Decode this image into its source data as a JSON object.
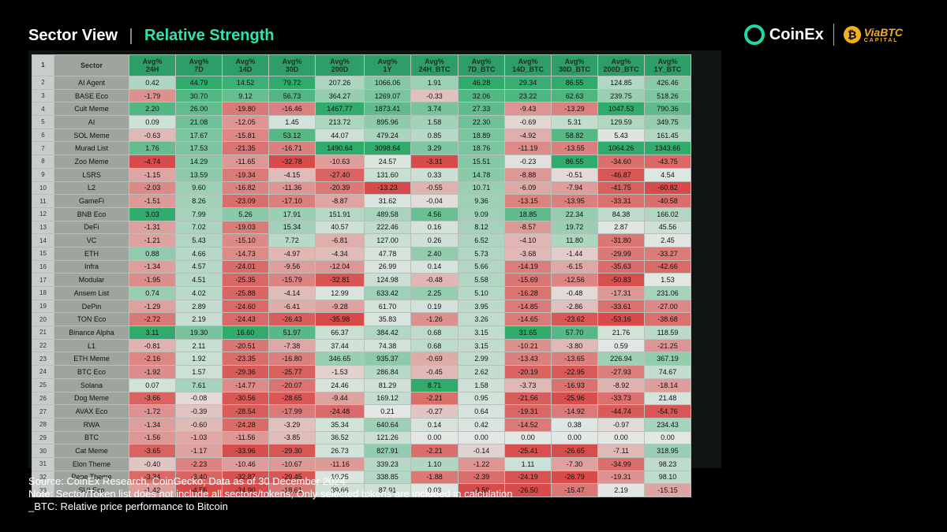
{
  "header": {
    "title": "Sector View",
    "subtitle": "Relative Strength"
  },
  "logos": {
    "coinex": "CoinEx",
    "viabtc": "ViaBTC",
    "viabtc_sub": "CAPITAL"
  },
  "colors": {
    "accent": "#2fe3b0",
    "positive": "#1fa664",
    "negative": "#d23a3a",
    "neutral": "#e4e8e5"
  },
  "table": {
    "header_row_number": "1",
    "columns": [
      "Sector",
      "Avg%\n24H",
      "Avg%\n7D",
      "Avg%\n14D",
      "Avg%\n30D",
      "Avg%\n200D",
      "Avg%\n1Y",
      "Avg%\n24H_BTC",
      "Avg%\n7D_BTC",
      "Avg%\n14D_BTC",
      "Avg%\n30D_BTC",
      "Avg%\n200D_BTC",
      "Avg%\n1Y_BTC"
    ],
    "rows": [
      {
        "n": "2",
        "sector": "AI Agent",
        "values": [
          "0.42",
          "44.79",
          "14.52",
          "79.72",
          "207.26",
          "1066.06",
          "1.91",
          "46.28",
          "29.34",
          "86.55",
          "124.85",
          "426.46"
        ]
      },
      {
        "n": "3",
        "sector": "BASE Eco",
        "values": [
          "-1.79",
          "30.70",
          "9.12",
          "56.73",
          "364.27",
          "1269.07",
          "-0.33",
          "32.06",
          "23.22",
          "62.63",
          "239.75",
          "518.26"
        ]
      },
      {
        "n": "4",
        "sector": "Cult Meme",
        "values": [
          "2.20",
          "26.00",
          "-19.80",
          "-16.46",
          "1467.77",
          "1873.41",
          "3.74",
          "27.33",
          "-9.43",
          "-13.29",
          "1047.53",
          "790.36"
        ]
      },
      {
        "n": "5",
        "sector": "AI",
        "values": [
          "0.09",
          "21.08",
          "-12.05",
          "1.45",
          "213.72",
          "895.96",
          "1.58",
          "22.30",
          "-0.69",
          "5.31",
          "129.59",
          "349.75"
        ]
      },
      {
        "n": "6",
        "sector": "SOL Meme",
        "values": [
          "-0.63",
          "17.67",
          "-15.81",
          "53.12",
          "44.07",
          "479.24",
          "0.85",
          "18.89",
          "-4.92",
          "58.82",
          "5.43",
          "161.45"
        ]
      },
      {
        "n": "7",
        "sector": "Murad List",
        "values": [
          "1.76",
          "17.53",
          "-21.35",
          "-16.71",
          "1490.64",
          "3098.64",
          "3.29",
          "18.76",
          "-11.19",
          "-13.55",
          "1064.26",
          "1343.66"
        ]
      },
      {
        "n": "8",
        "sector": "Zoo Meme",
        "values": [
          "-4.74",
          "14.29",
          "-11.65",
          "-32.78",
          "-10.63",
          "24.57",
          "-3.31",
          "15.51",
          "-0.23",
          "86.55",
          "-34.60",
          "-43.75"
        ]
      },
      {
        "n": "9",
        "sector": "LSRS",
        "values": [
          "-1.15",
          "13.59",
          "-19.34",
          "-4.15",
          "-27.40",
          "131.60",
          "0.33",
          "14.78",
          "-8.88",
          "-0.51",
          "-46.87",
          "4.54"
        ]
      },
      {
        "n": "10",
        "sector": "L2",
        "values": [
          "-2.03",
          "9.60",
          "-16.82",
          "-11.36",
          "-20.39",
          "-13.23",
          "-0.55",
          "10.71",
          "-6.09",
          "-7.94",
          "-41.75",
          "-60.82"
        ]
      },
      {
        "n": "11",
        "sector": "GameFi",
        "values": [
          "-1.51",
          "8.26",
          "-23.09",
          "-17.10",
          "-8.87",
          "31.62",
          "-0.04",
          "9.36",
          "-13.15",
          "-13.95",
          "-33.31",
          "-40.58"
        ]
      },
      {
        "n": "12",
        "sector": "BNB Eco",
        "values": [
          "3.03",
          "7.99",
          "5.26",
          "17.91",
          "151.91",
          "489.58",
          "4.56",
          "9.09",
          "18.85",
          "22.34",
          "84.38",
          "166.02"
        ]
      },
      {
        "n": "13",
        "sector": "DeFi",
        "values": [
          "-1.31",
          "7.02",
          "-19.03",
          "15.34",
          "40.57",
          "222.46",
          "0.16",
          "8.12",
          "-8.57",
          "19.72",
          "2.87",
          "45.56"
        ]
      },
      {
        "n": "14",
        "sector": "VC",
        "values": [
          "-1.21",
          "5.43",
          "-15.10",
          "7.72",
          "-6.81",
          "127.00",
          "0.26",
          "6.52",
          "-4.10",
          "11.80",
          "-31.80",
          "2.45"
        ]
      },
      {
        "n": "15",
        "sector": "ETH",
        "values": [
          "0.88",
          "4.66",
          "-14.73",
          "-4.97",
          "-4.34",
          "47.78",
          "2.40",
          "5.73",
          "-3.68",
          "-1.44",
          "-29.99",
          "-33.27"
        ]
      },
      {
        "n": "16",
        "sector": "Infra",
        "values": [
          "-1.34",
          "4.57",
          "-24.01",
          "-9.56",
          "-12.04",
          "26.99",
          "0.14",
          "5.66",
          "-14.19",
          "-6.15",
          "-35.63",
          "-42.66"
        ]
      },
      {
        "n": "17",
        "sector": "Modular",
        "values": [
          "-1.95",
          "4.51",
          "-25.35",
          "-15.79",
          "-32.81",
          "124.98",
          "-0.48",
          "5.58",
          "-15.69",
          "-12.56",
          "-50.83",
          "1.53"
        ]
      },
      {
        "n": "18",
        "sector": "Ansem List",
        "values": [
          "0.74",
          "4.02",
          "-25.88",
          "-4.14",
          "12.99",
          "633.42",
          "2.25",
          "5.10",
          "-16.28",
          "-0.48",
          "-17.31",
          "231.06"
        ]
      },
      {
        "n": "19",
        "sector": "DePin",
        "values": [
          "-1.29",
          "2.89",
          "-24.60",
          "-6.41",
          "-9.28",
          "61.70",
          "0.19",
          "3.95",
          "-14.85",
          "-2.86",
          "-33.61",
          "-27.00"
        ]
      },
      {
        "n": "20",
        "sector": "TON Eco",
        "values": [
          "-2.72",
          "2.19",
          "-24.43",
          "-26.43",
          "-35.98",
          "35.83",
          "-1.26",
          "3.26",
          "-14.65",
          "-23.62",
          "-53.16",
          "-38.68"
        ]
      },
      {
        "n": "21",
        "sector": "Binance Alpha",
        "values": [
          "3.11",
          "19.30",
          "16.60",
          "51.97",
          "66.37",
          "384.42",
          "0.68",
          "3.15",
          "31.65",
          "57.70",
          "21.76",
          "118.59"
        ]
      },
      {
        "n": "22",
        "sector": "L1",
        "values": [
          "-0.81",
          "2.11",
          "-20.51",
          "-7.38",
          "37.44",
          "74.38",
          "0.68",
          "3.15",
          "-10.21",
          "-3.80",
          "0.59",
          "-21.25"
        ]
      },
      {
        "n": "23",
        "sector": "ETH Meme",
        "values": [
          "-2.16",
          "1.92",
          "-23.35",
          "-16.80",
          "346.65",
          "935.37",
          "-0.69",
          "2.99",
          "-13.43",
          "-13.65",
          "226.94",
          "367.19"
        ]
      },
      {
        "n": "24",
        "sector": "BTC Eco",
        "values": [
          "-1.92",
          "1.57",
          "-29.36",
          "-25.77",
          "-1.53",
          "286.84",
          "-0.45",
          "2.62",
          "-20.19",
          "-22.95",
          "-27.93",
          "74.67"
        ]
      },
      {
        "n": "25",
        "sector": "Solana",
        "values": [
          "0.07",
          "7.61",
          "-14.77",
          "-20.07",
          "24.46",
          "81.29",
          "8.71",
          "1.58",
          "-3.73",
          "-16.93",
          "-8.92",
          "-18.14"
        ]
      },
      {
        "n": "26",
        "sector": "Dog Meme",
        "values": [
          "-3.66",
          "-0.08",
          "-30.56",
          "-28.65",
          "-9.44",
          "169.12",
          "-2.21",
          "0.95",
          "-21.56",
          "-25.96",
          "-33.73",
          "21.48"
        ]
      },
      {
        "n": "27",
        "sector": "AVAX Eco",
        "values": [
          "-1.72",
          "-0.39",
          "-28.54",
          "-17.99",
          "-24.48",
          "0.21",
          "-0.27",
          "0.64",
          "-19.31",
          "-14.92",
          "-44.74",
          "-54.76"
        ]
      },
      {
        "n": "28",
        "sector": "RWA",
        "values": [
          "-1.34",
          "-0.60",
          "-24.28",
          "-3.29",
          "35.34",
          "640.64",
          "0.14",
          "0.42",
          "-14.52",
          "0.38",
          "-0.97",
          "234.43"
        ]
      },
      {
        "n": "29",
        "sector": "BTC",
        "values": [
          "-1.56",
          "-1.03",
          "-11.56",
          "-3.85",
          "36.52",
          "121.26",
          "0.00",
          "0.00",
          "0.00",
          "0.00",
          "0.00",
          "0.00"
        ]
      },
      {
        "n": "30",
        "sector": "Cat Meme",
        "values": [
          "-3.65",
          "-1.17",
          "-33.96",
          "-29.30",
          "26.73",
          "827.91",
          "-2.21",
          "-0.14",
          "-25.41",
          "-26.65",
          "-7.11",
          "318.95"
        ]
      },
      {
        "n": "31",
        "sector": "Elon Theme",
        "values": [
          "-0.40",
          "-2.23",
          "-10.46",
          "-10.67",
          "-11.16",
          "339.23",
          "1.10",
          "-1.22",
          "1.11",
          "-7.30",
          "-34.99",
          "98.23"
        ]
      },
      {
        "n": "32",
        "sector": "Pepe Theme",
        "values": [
          "-3.34",
          "-3.40",
          "-32.87",
          "-29.45",
          "10.25",
          "338.85",
          "-1.88",
          "-2.39",
          "-24.19",
          "-26.79",
          "-19.31",
          "98.10"
        ]
      },
      {
        "n": "33",
        "sector": "SUI Eco",
        "values": [
          "-1.42",
          "-4.56",
          "-34.90",
          "-18.61",
          "39.66",
          "87.91",
          "0.03",
          "-3.59",
          "-26.50",
          "-15.47",
          "2.19",
          "-15.15"
        ]
      }
    ]
  },
  "footer": {
    "source": "Source: CoinEx Research, CoinGecko; Data as of 30 December 2024",
    "note": "Note: Sector/Token list does not include all sectors/tokens; Only selected tokens are included in calculation",
    "btc": "_BTC: Relative price performance to Bitcoin"
  }
}
